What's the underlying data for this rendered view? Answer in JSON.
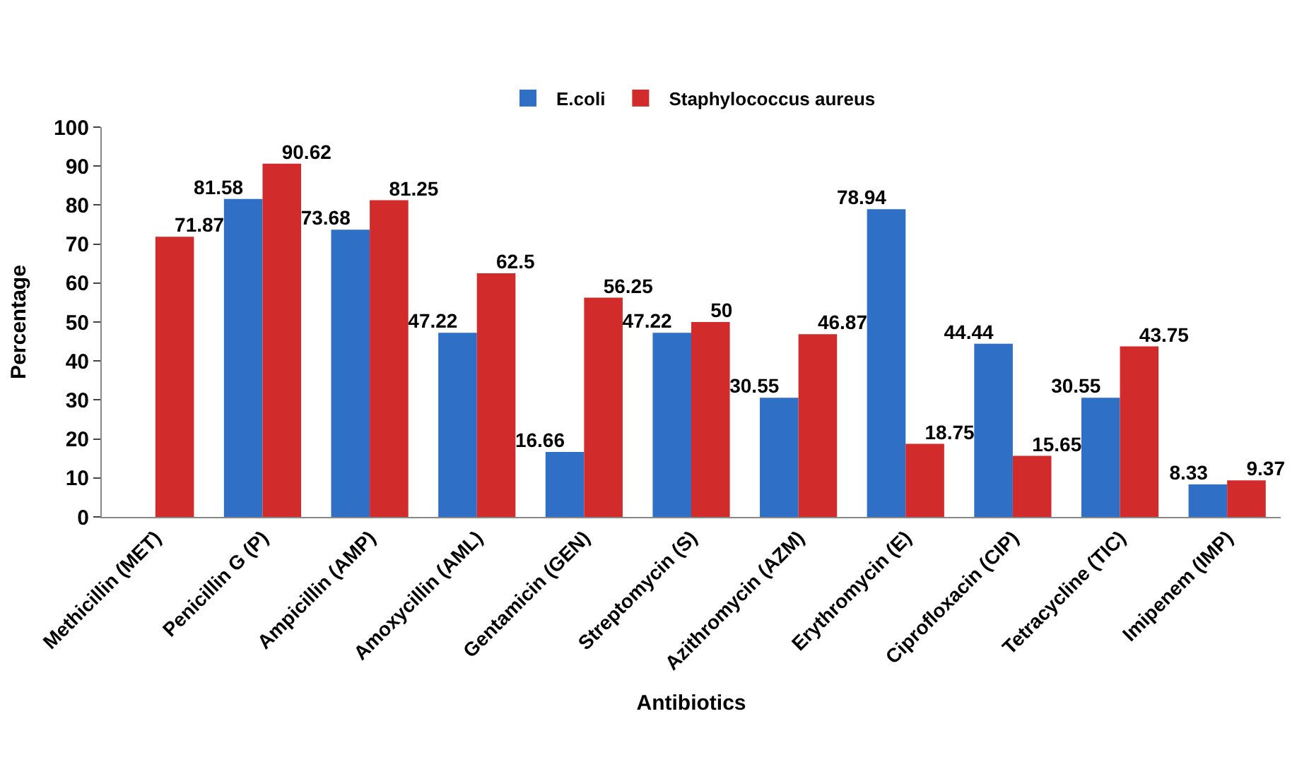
{
  "chart_data": {
    "type": "bar",
    "xlabel": "Antibiotics",
    "ylabel": "Percentage",
    "categories": [
      "Methicillin (MET)",
      "Penicillin G (P)",
      "Ampicillin (AMP)",
      "Amoxycillin (AML)",
      "Gentamicin (GEN)",
      "Streptomycin (S)",
      "Azithromycin (AZM)",
      "Erythromycin (E)",
      "Ciprofloxacin (CIP)",
      "Tetracycline (TIC)",
      "Imipenem (IMP)"
    ],
    "series": [
      {
        "name": "E.coli",
        "color": "#2f6fc6",
        "values": [
          null,
          81.58,
          73.68,
          47.22,
          16.66,
          47.22,
          30.55,
          78.94,
          44.44,
          30.55,
          8.33
        ]
      },
      {
        "name": "Staphylococcus aureus",
        "color": "#d22b2b",
        "values": [
          71.87,
          90.62,
          81.25,
          62.5,
          56.25,
          50,
          46.87,
          18.75,
          15.65,
          43.75,
          9.37
        ]
      }
    ],
    "ylim": [
      0,
      100
    ],
    "yticks": [
      0,
      10,
      20,
      30,
      40,
      50,
      60,
      70,
      80,
      90,
      100
    ],
    "legend": "top",
    "data_labels": true
  }
}
